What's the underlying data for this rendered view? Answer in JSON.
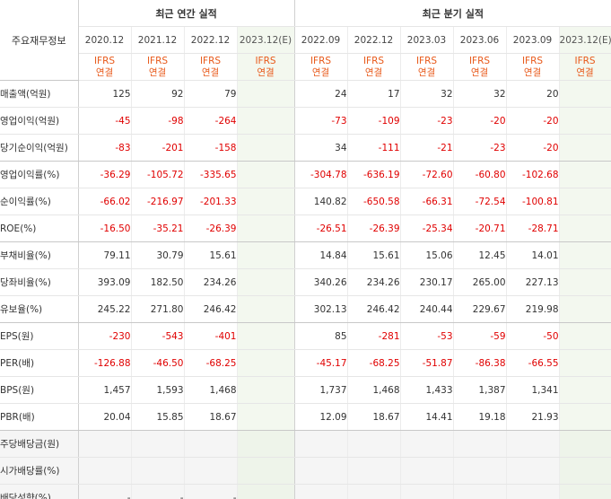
{
  "header": {
    "row_label": "주요재무정보",
    "annual_title": "최근 연간 실적",
    "quarterly_title": "최근 분기 실적"
  },
  "periods": {
    "annual": [
      "2020.12",
      "2021.12",
      "2022.12",
      "2023.12(E)"
    ],
    "quarterly": [
      "2022.09",
      "2022.12",
      "2023.03",
      "2023.06",
      "2023.09",
      "2023.12(E)"
    ]
  },
  "accounting": {
    "line1": "IFRS",
    "line2": "연결"
  },
  "rows": [
    {
      "label": "매출액(억원)",
      "annual": [
        "125",
        "92",
        "79",
        ""
      ],
      "quarterly": [
        "24",
        "17",
        "32",
        "32",
        "20",
        ""
      ]
    },
    {
      "label": "영업이익(억원)",
      "annual": [
        "-45",
        "-98",
        "-264",
        ""
      ],
      "quarterly": [
        "-73",
        "-109",
        "-23",
        "-20",
        "-20",
        ""
      ]
    },
    {
      "label": "당기순이익(억원)",
      "annual": [
        "-83",
        "-201",
        "-158",
        ""
      ],
      "quarterly": [
        "34",
        "-111",
        "-21",
        "-23",
        "-20",
        ""
      ]
    },
    {
      "label": "영업이익률(%)",
      "annual": [
        "-36.29",
        "-105.72",
        "-335.65",
        ""
      ],
      "quarterly": [
        "-304.78",
        "-636.19",
        "-72.60",
        "-60.80",
        "-102.68",
        ""
      ]
    },
    {
      "label": "순이익률(%)",
      "annual": [
        "-66.02",
        "-216.97",
        "-201.33",
        ""
      ],
      "quarterly": [
        "140.82",
        "-650.58",
        "-66.31",
        "-72.54",
        "-100.81",
        ""
      ]
    },
    {
      "label": "ROE(%)",
      "annual": [
        "-16.50",
        "-35.21",
        "-26.39",
        ""
      ],
      "quarterly": [
        "-26.51",
        "-26.39",
        "-25.34",
        "-20.71",
        "-28.71",
        ""
      ]
    },
    {
      "label": "부채비율(%)",
      "annual": [
        "79.11",
        "30.79",
        "15.61",
        ""
      ],
      "quarterly": [
        "14.84",
        "15.61",
        "15.06",
        "12.45",
        "14.01",
        ""
      ]
    },
    {
      "label": "당좌비율(%)",
      "annual": [
        "393.09",
        "182.50",
        "234.26",
        ""
      ],
      "quarterly": [
        "340.26",
        "234.26",
        "230.17",
        "265.00",
        "227.13",
        ""
      ]
    },
    {
      "label": "유보율(%)",
      "annual": [
        "245.22",
        "271.80",
        "246.42",
        ""
      ],
      "quarterly": [
        "302.13",
        "246.42",
        "240.44",
        "229.67",
        "219.98",
        ""
      ]
    },
    {
      "label": "EPS(원)",
      "annual": [
        "-230",
        "-543",
        "-401",
        ""
      ],
      "quarterly": [
        "85",
        "-281",
        "-53",
        "-59",
        "-50",
        ""
      ]
    },
    {
      "label": "PER(배)",
      "annual": [
        "-126.88",
        "-46.50",
        "-68.25",
        ""
      ],
      "quarterly": [
        "-45.17",
        "-68.25",
        "-51.87",
        "-86.38",
        "-66.55",
        ""
      ]
    },
    {
      "label": "BPS(원)",
      "annual": [
        "1,457",
        "1,593",
        "1,468",
        ""
      ],
      "quarterly": [
        "1,737",
        "1,468",
        "1,433",
        "1,387",
        "1,341",
        ""
      ]
    },
    {
      "label": "PBR(배)",
      "annual": [
        "20.04",
        "15.85",
        "18.67",
        ""
      ],
      "quarterly": [
        "12.09",
        "18.67",
        "14.41",
        "19.18",
        "21.93",
        ""
      ]
    },
    {
      "label": "주당배당금(원)",
      "annual": [
        "",
        "",
        "",
        ""
      ],
      "quarterly": [
        "",
        "",
        "",
        "",
        "",
        ""
      ]
    },
    {
      "label": "시가배당률(%)",
      "annual": [
        "",
        "",
        "",
        ""
      ],
      "quarterly": [
        "",
        "",
        "",
        "",
        "",
        ""
      ]
    },
    {
      "label": "배당성향(%)",
      "annual": [
        "-",
        "-",
        "-",
        ""
      ],
      "quarterly": [
        "",
        "",
        "",
        "",
        "",
        ""
      ]
    }
  ],
  "colors": {
    "negative": "#e00000",
    "accounting": "#e8591a",
    "estimate_bg": "#f3f8ef"
  }
}
